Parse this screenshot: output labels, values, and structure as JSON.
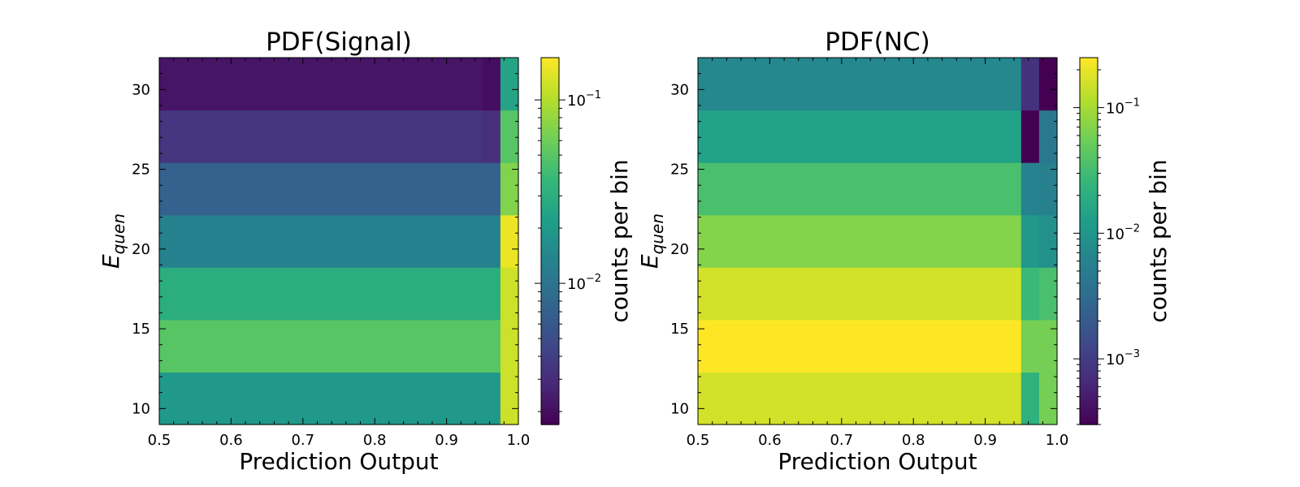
{
  "chart_data": [
    {
      "type": "heatmap",
      "title": "PDF(Signal)",
      "xlabel": "Prediction Output",
      "ylabel_main": "E",
      "ylabel_sub": "quen",
      "xlim": [
        0.5,
        1.0
      ],
      "ylim": [
        9,
        32
      ],
      "xticks": [
        0.5,
        0.6,
        0.7,
        0.8,
        0.9,
        1.0
      ],
      "xtick_labels": [
        "0.5",
        "0.6",
        "0.7",
        "0.8",
        "0.9",
        "1.0"
      ],
      "yticks": [
        10,
        15,
        20,
        25,
        30
      ],
      "ytick_labels": [
        "10",
        "15",
        "20",
        "25",
        "30"
      ],
      "x_bins": [
        0.5,
        0.95,
        0.975,
        1.0
      ],
      "y_bins": [
        9.0,
        12.2857,
        15.5714,
        18.8571,
        22.1429,
        25.4286,
        28.7143,
        32.0
      ],
      "values": [
        [
          0.02,
          0.02,
          0.12
        ],
        [
          0.05,
          0.05,
          0.12
        ],
        [
          0.03,
          0.03,
          0.12
        ],
        [
          0.013,
          0.013,
          0.15
        ],
        [
          0.007,
          0.007,
          0.07
        ],
        [
          0.0035,
          0.0032,
          0.05
        ],
        [
          0.0022,
          0.002,
          0.025
        ]
      ],
      "colorbar": {
        "label": "counts per bin",
        "scale": "log",
        "range": [
          0.0017,
          0.17
        ],
        "major_ticks": [
          0.01,
          0.1
        ],
        "major_labels": [
          {
            "base": "10",
            "exp": "−2"
          },
          {
            "base": "10",
            "exp": "−1"
          }
        ]
      },
      "colormap": "viridis"
    },
    {
      "type": "heatmap",
      "title": "PDF(NC)",
      "xlabel": "Prediction Output",
      "ylabel_main": "E",
      "ylabel_sub": "quen",
      "xlim": [
        0.5,
        1.0
      ],
      "ylim": [
        9,
        32
      ],
      "xticks": [
        0.5,
        0.6,
        0.7,
        0.8,
        0.9,
        1.0
      ],
      "xtick_labels": [
        "0.5",
        "0.6",
        "0.7",
        "0.8",
        "0.9",
        "1.0"
      ],
      "yticks": [
        10,
        15,
        20,
        25,
        30
      ],
      "ytick_labels": [
        "10",
        "15",
        "20",
        "25",
        "30"
      ],
      "x_bins": [
        0.5,
        0.95,
        0.975,
        1.0
      ],
      "y_bins": [
        9.0,
        12.2857,
        15.5714,
        18.8571,
        22.1429,
        25.4286,
        28.7143,
        32.0
      ],
      "values": [
        [
          0.16,
          0.022,
          0.06
        ],
        [
          0.25,
          0.06,
          0.06
        ],
        [
          0.16,
          0.028,
          0.035
        ],
        [
          0.07,
          0.011,
          0.009
        ],
        [
          0.035,
          0.006,
          0.0056
        ],
        [
          0.014,
          0.0003,
          0.0045
        ],
        [
          0.007,
          0.0008,
          0.0003
        ]
      ],
      "colorbar": {
        "label": "counts per bin",
        "scale": "log",
        "range": [
          0.0003,
          0.25
        ],
        "major_ticks": [
          0.001,
          0.01,
          0.1
        ],
        "major_labels": [
          {
            "base": "10",
            "exp": "−3"
          },
          {
            "base": "10",
            "exp": "−2"
          },
          {
            "base": "10",
            "exp": "−1"
          }
        ]
      },
      "colormap": "viridis"
    }
  ]
}
